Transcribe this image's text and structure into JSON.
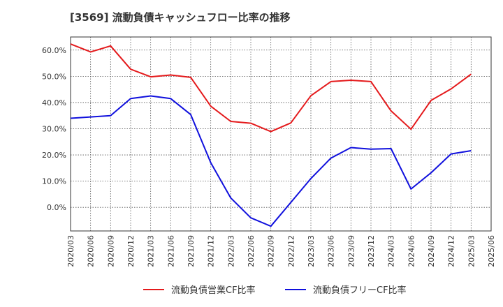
{
  "chart_data": {
    "type": "line",
    "title": "[3569]  流動負債キャッシュフロー比率の推移",
    "xlabel": "",
    "ylabel": "",
    "ylim": [
      -9,
      65
    ],
    "yticks": [
      0,
      10,
      20,
      30,
      40,
      50,
      60
    ],
    "ytick_labels": [
      "0.0%",
      "10.0%",
      "20.0%",
      "30.0%",
      "40.0%",
      "50.0%",
      "60.0%"
    ],
    "categories": [
      "2020/03",
      "2020/06",
      "2020/09",
      "2020/12",
      "2021/03",
      "2021/06",
      "2021/09",
      "2021/12",
      "2022/03",
      "2022/06",
      "2022/09",
      "2022/12",
      "2023/03",
      "2023/06",
      "2023/09",
      "2023/12",
      "2024/03",
      "2024/06",
      "2024/09",
      "2024/12",
      "2025/03",
      "2025/06"
    ],
    "series": [
      {
        "name": "流動負債営業CF比率",
        "color": "#e41a1c",
        "values": [
          62.3,
          59.3,
          61.6,
          52.7,
          49.8,
          50.5,
          49.6,
          38.6,
          32.8,
          32.1,
          28.9,
          32.2,
          42.6,
          48.0,
          48.5,
          48.0,
          36.8,
          29.8,
          40.8,
          45.2,
          50.8,
          null
        ]
      },
      {
        "name": "流動負債フリーCF比率",
        "color": "#1010dd",
        "values": [
          34.0,
          34.5,
          35.0,
          41.5,
          42.5,
          41.5,
          35.4,
          17.0,
          3.6,
          -4.0,
          -7.2,
          1.9,
          11.0,
          18.8,
          22.8,
          22.2,
          22.4,
          7.0,
          13.2,
          20.4,
          21.6,
          null
        ]
      }
    ],
    "legend_position": "bottom-center",
    "grid": true
  }
}
